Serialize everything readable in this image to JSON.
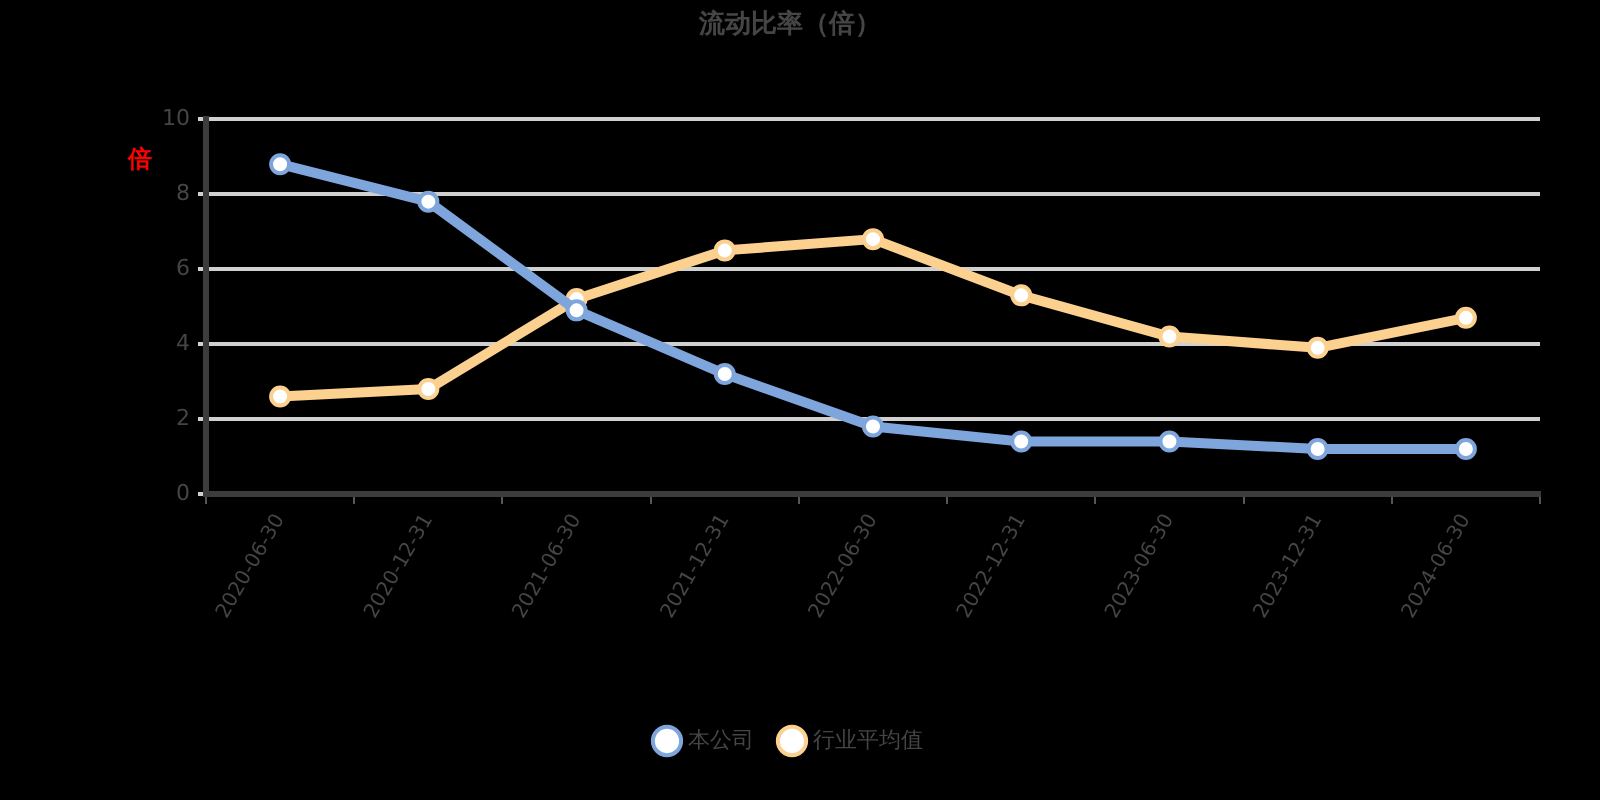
{
  "chart_data": {
    "type": "line",
    "title": "流动比率（倍）",
    "ylabel": "倍",
    "categories": [
      "2020-06-30",
      "2020-12-31",
      "2021-06-30",
      "2021-12-31",
      "2022-06-30",
      "2022-12-31",
      "2023-06-30",
      "2023-12-31",
      "2024-06-30"
    ],
    "series": [
      {
        "name": "本公司",
        "color": "#7ea6dc",
        "values": [
          8.8,
          7.8,
          4.9,
          3.2,
          1.8,
          1.4,
          1.4,
          1.2,
          1.2
        ]
      },
      {
        "name": "行业平均值",
        "color": "#fcd18f",
        "values": [
          2.6,
          2.8,
          5.2,
          6.5,
          6.8,
          5.3,
          4.2,
          3.9,
          4.7
        ]
      }
    ],
    "ylim": [
      0,
      10
    ],
    "yticks": [
      0,
      2,
      4,
      6,
      8,
      10
    ],
    "grid": "y",
    "legend": "bottom",
    "marker": "circle",
    "line_style": "solid"
  }
}
